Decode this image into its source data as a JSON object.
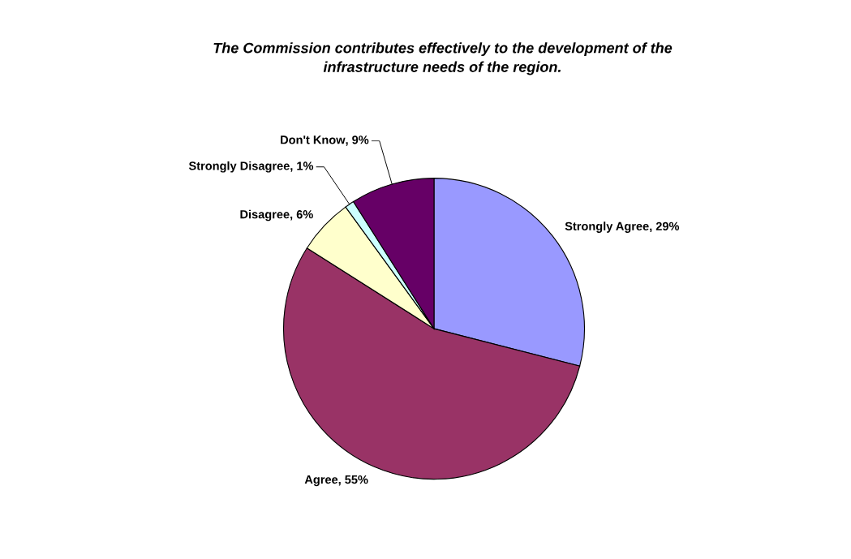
{
  "chart_data": {
    "type": "pie",
    "title": "The Commission contributes effectively to the development of the\ninfrastructure needs of the region.",
    "categories": [
      "Strongly Agree",
      "Agree",
      "Disagree",
      "Strongly Disagree",
      "Don't Know"
    ],
    "values": [
      29,
      55,
      6,
      1,
      9
    ],
    "colors": [
      "#9999ff",
      "#993366",
      "#ffffcc",
      "#ccffff",
      "#660066"
    ],
    "value_labels": [
      ", 29%",
      ", 55%",
      ", 6%",
      ", 1%",
      ", 9%"
    ],
    "legend": false
  }
}
